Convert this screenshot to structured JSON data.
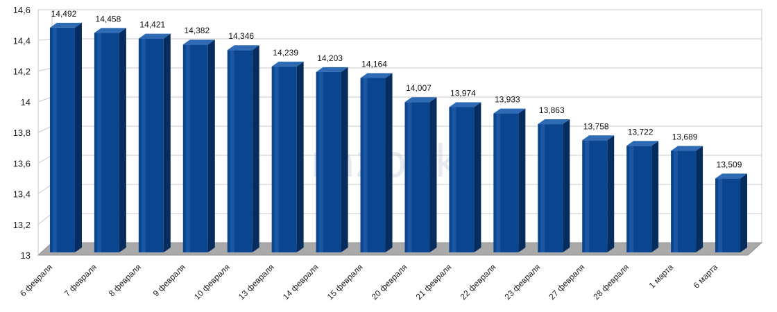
{
  "chart_data": {
    "type": "bar",
    "categories": [
      "6 февраля",
      "7 февраля",
      "8 февраля",
      "9 февраля",
      "10 февраля",
      "13 февраля",
      "14 февраля",
      "15 февраля",
      "20 февраля",
      "21 февраля",
      "22 февраля",
      "23 февраля",
      "27 февраля",
      "28 февраля",
      "1 марта",
      "6 марта"
    ],
    "values": [
      14.492,
      14.458,
      14.421,
      14.382,
      14.346,
      14.239,
      14.203,
      14.164,
      14.007,
      13.974,
      13.933,
      13.863,
      13.758,
      13.722,
      13.689,
      13.509
    ],
    "data_labels": [
      "14,492",
      "14,458",
      "14,421",
      "14,382",
      "14,346",
      "14,239",
      "14,203",
      "14,164",
      "14,007",
      "13,974",
      "13,933",
      "13,863",
      "13,758",
      "13,722",
      "13,689",
      "13,509"
    ],
    "yticks": [
      "13",
      "13,2",
      "13,4",
      "13,6",
      "13,8",
      "14",
      "14,2",
      "14,4",
      "14,6"
    ],
    "ylim": [
      13,
      14.6
    ],
    "grid": true,
    "legend": "none",
    "title": "",
    "xlabel": "",
    "ylabel": "",
    "bar_color": "#0b4590",
    "bar_dark": "#072d5e",
    "bar_light": "#2f6bb5",
    "watermark": "razbek"
  }
}
